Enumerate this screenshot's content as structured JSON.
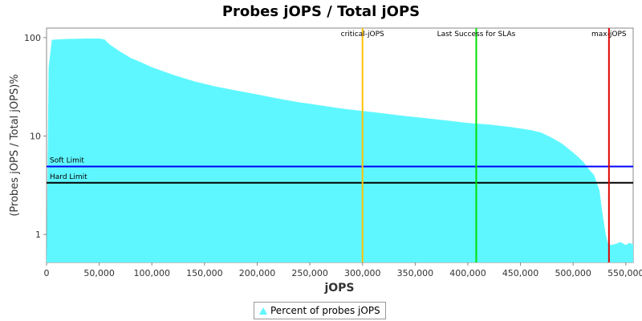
{
  "chart_data": {
    "type": "area",
    "title": "Probes jOPS / Total jOPS",
    "xlabel": "jOPS",
    "ylabel": "(Probes jOPS / Total jOPS)%",
    "xlim": [
      0,
      557000
    ],
    "ylim": [
      0.52,
      125
    ],
    "yscale": "log",
    "grid": false,
    "legend_position": "bottom",
    "x_ticks": [
      "0",
      "50,000",
      "100,000",
      "150,000",
      "200,000",
      "250,000",
      "300,000",
      "350,000",
      "400,000",
      "450,000",
      "500,000",
      "550,000"
    ],
    "y_ticks": [
      "1",
      "10",
      "100"
    ],
    "series": [
      {
        "name": "Percent of probes jOPS",
        "color": "#5ff7ff",
        "x": [
          0,
          2000,
          5000,
          10000,
          20000,
          30000,
          40000,
          50000,
          55000,
          60000,
          70000,
          80000,
          90000,
          100000,
          120000,
          140000,
          160000,
          180000,
          200000,
          220000,
          240000,
          260000,
          280000,
          300000,
          320000,
          340000,
          360000,
          380000,
          400000,
          420000,
          440000,
          460000,
          470000,
          480000,
          490000,
          500000,
          505000,
          510000,
          515000,
          520000,
          525000,
          528000,
          531000,
          533000,
          536000,
          540000,
          545000,
          550000,
          553000,
          557000
        ],
        "values": [
          0.52,
          50,
          95,
          96,
          97,
          97.5,
          98,
          98,
          96,
          85,
          72,
          62,
          56,
          50,
          42,
          36,
          32,
          29,
          26.5,
          24,
          22,
          20.5,
          19,
          18,
          17,
          16,
          15.2,
          14.4,
          13.6,
          13.1,
          12.4,
          11.5,
          10.8,
          9.6,
          8.3,
          6.8,
          6.1,
          5.4,
          4.6,
          4.0,
          2.8,
          1.6,
          1.0,
          0.82,
          0.78,
          0.8,
          0.84,
          0.78,
          0.82,
          0.8
        ]
      }
    ],
    "vertical_markers": [
      {
        "label": "critical-jOPS",
        "x": 300000,
        "color": "#ffc000"
      },
      {
        "label": "Last Success for SLAs",
        "x": 408000,
        "color": "#00e000"
      },
      {
        "label": "max-jOPS",
        "x": 534000,
        "color": "#e00000"
      }
    ],
    "horizontal_markers": [
      {
        "label": "Soft Limit",
        "y": 4.9,
        "color": "#0000ff"
      },
      {
        "label": "Hard Limit",
        "y": 3.35,
        "color": "#000000"
      }
    ]
  }
}
